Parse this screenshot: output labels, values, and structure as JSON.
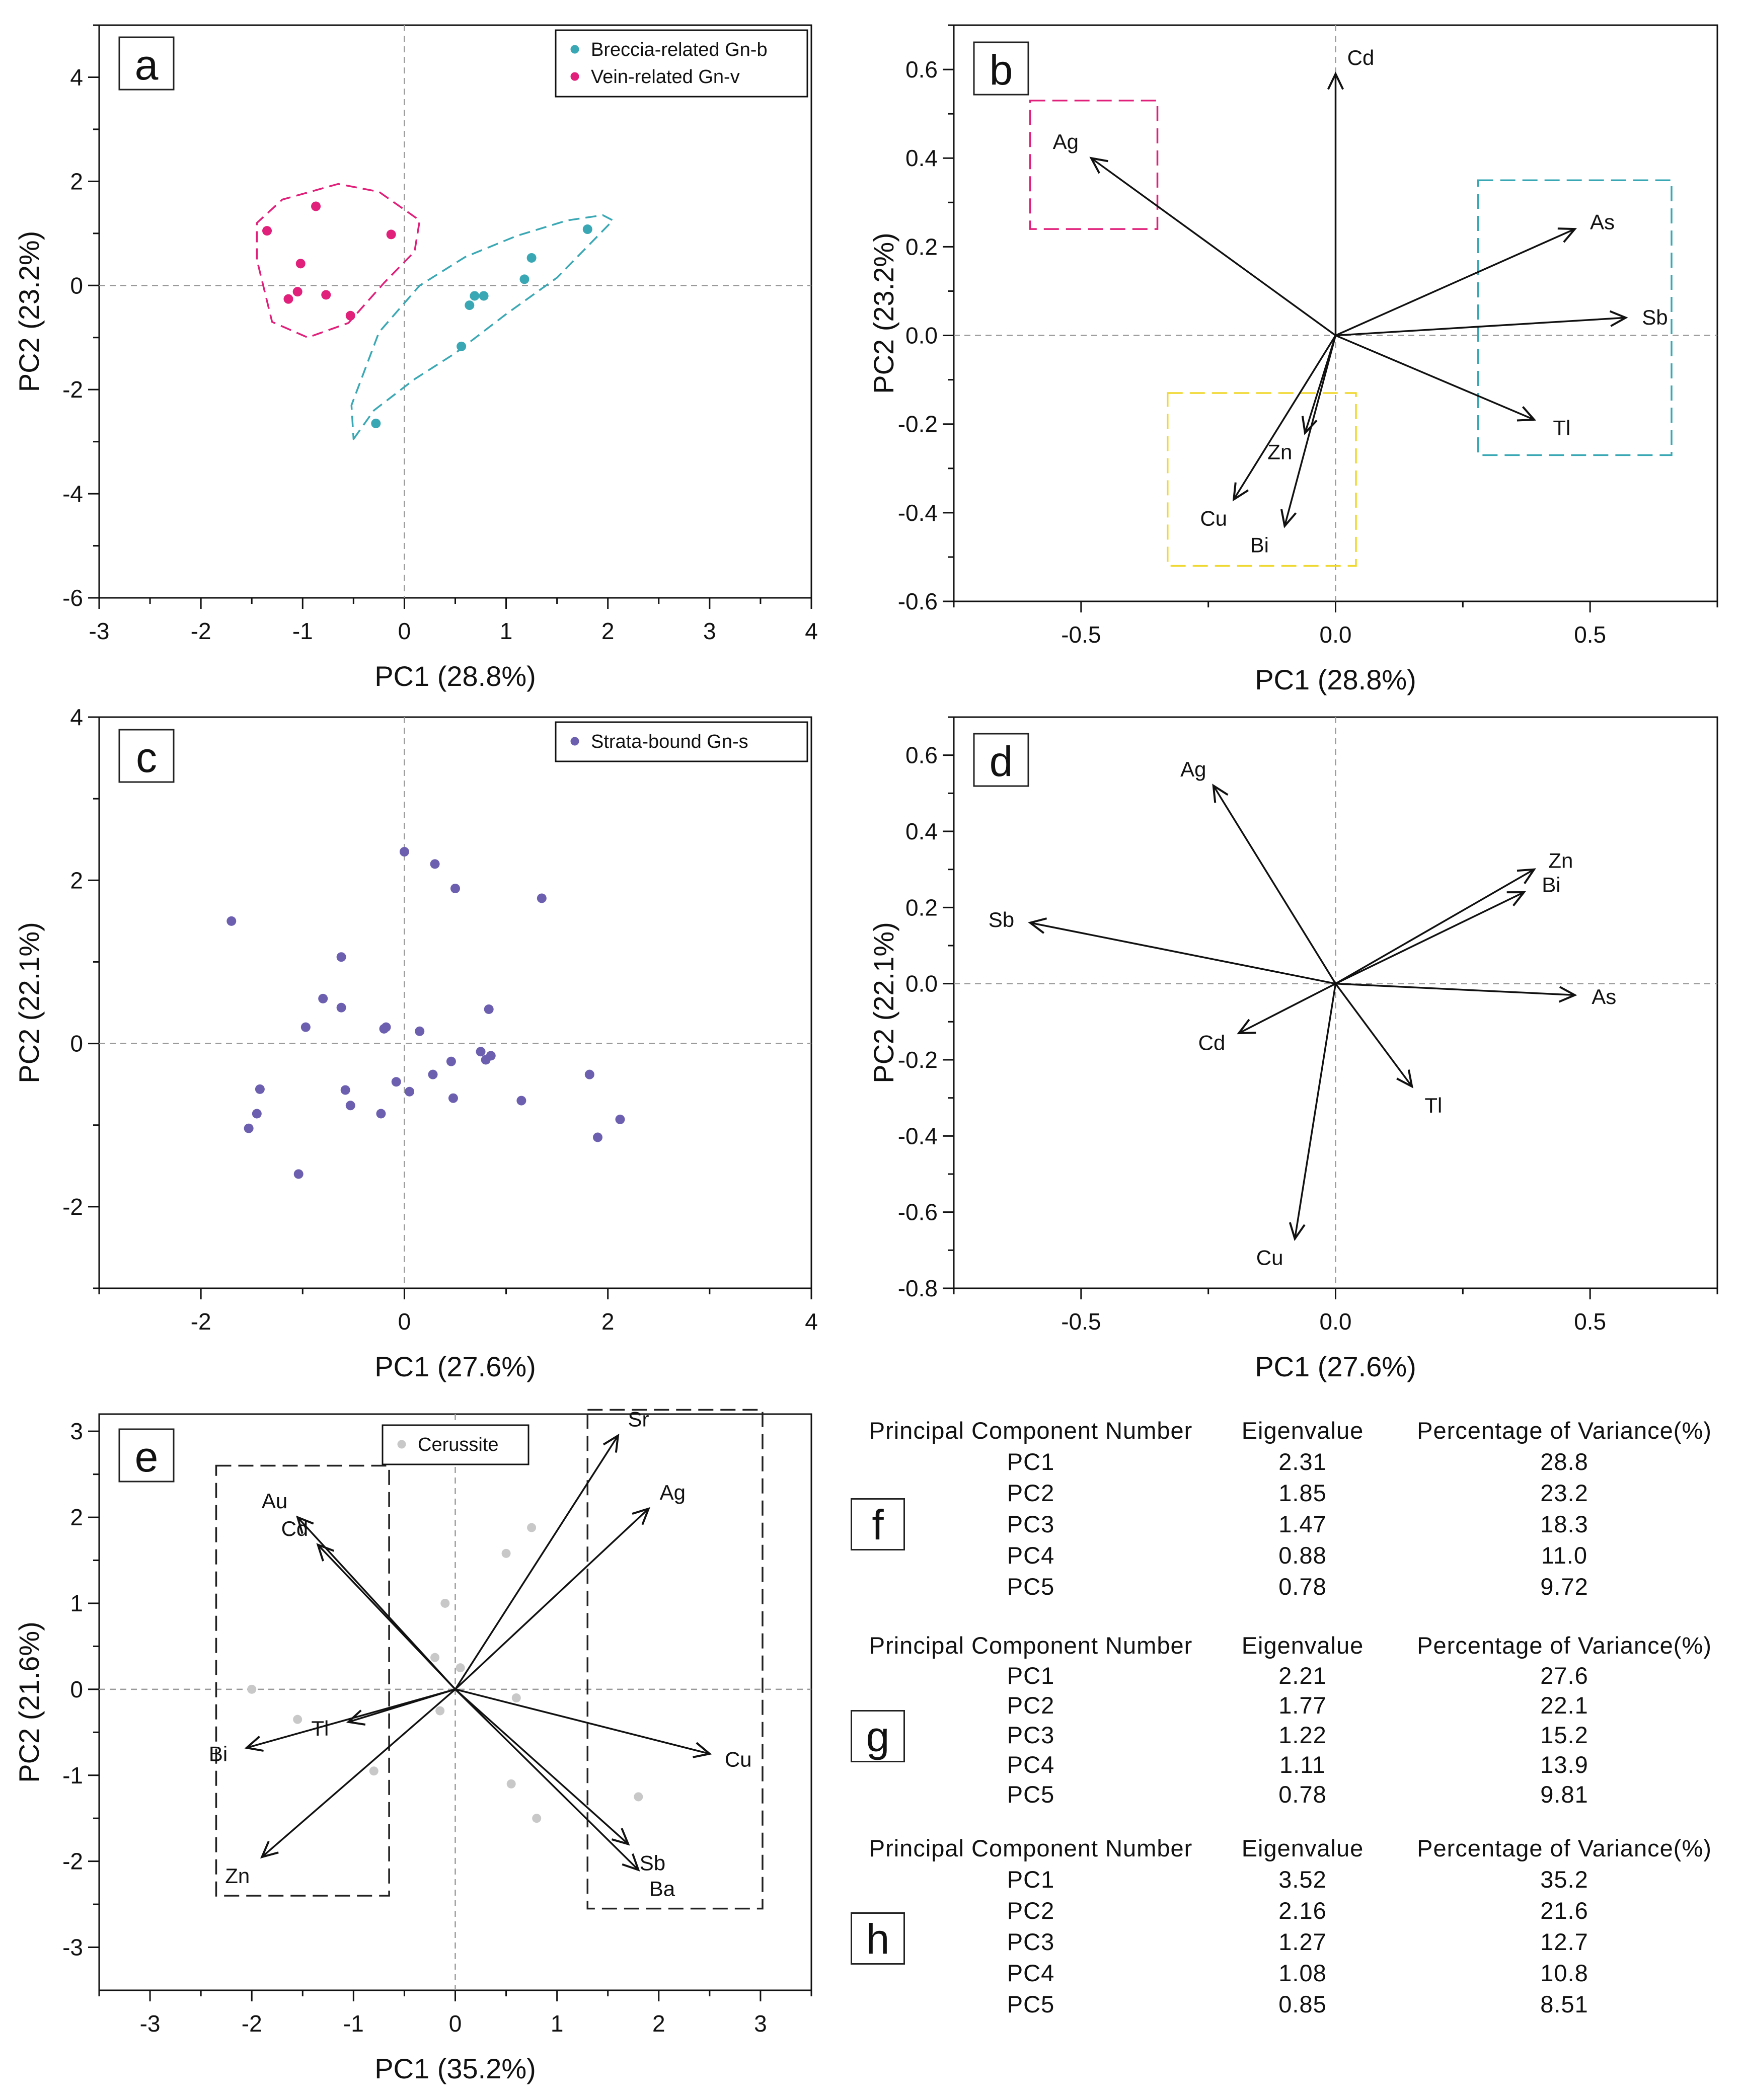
{
  "chart_data": [
    {
      "panel": "a",
      "type": "scatter",
      "xlabel": "PC1 (28.8%)",
      "ylabel": "PC2 (23.2%)",
      "xlim": [
        -3,
        4
      ],
      "ylim": [
        -6,
        5
      ],
      "xticks": [
        -3,
        -2,
        -1,
        0,
        1,
        2,
        3,
        4
      ],
      "yticks": [
        -6,
        -4,
        -2,
        0,
        2,
        4
      ],
      "legend_position": "top-right",
      "series": [
        {
          "name": "Breccia-related Gn-b",
          "color": "#3aa8b4",
          "points": [
            [
              -0.28,
              -2.65
            ],
            [
              0.56,
              -1.17
            ],
            [
              0.64,
              -0.38
            ],
            [
              0.69,
              -0.2
            ],
            [
              0.78,
              -0.2
            ],
            [
              1.18,
              0.12
            ],
            [
              1.25,
              0.53
            ],
            [
              1.8,
              1.08
            ]
          ],
          "envelope": [
            [
              -0.5,
              -2.95
            ],
            [
              -0.3,
              -2.4
            ],
            [
              0.1,
              -1.8
            ],
            [
              0.5,
              -1.3
            ],
            [
              1.0,
              -0.55
            ],
            [
              1.5,
              0.15
            ],
            [
              1.9,
              0.95
            ],
            [
              2.05,
              1.25
            ],
            [
              1.95,
              1.35
            ],
            [
              1.6,
              1.25
            ],
            [
              1.1,
              0.95
            ],
            [
              0.6,
              0.55
            ],
            [
              0.15,
              0.0
            ],
            [
              -0.25,
              -0.9
            ],
            [
              -0.52,
              -2.3
            ],
            [
              -0.5,
              -2.95
            ]
          ]
        },
        {
          "name": "Vein-related Gn-v",
          "color": "#e0207a",
          "points": [
            [
              -1.35,
              1.05
            ],
            [
              -0.87,
              1.52
            ],
            [
              -1.02,
              0.42
            ],
            [
              -1.05,
              -0.12
            ],
            [
              -1.14,
              -0.26
            ],
            [
              -0.77,
              -0.18
            ],
            [
              -0.53,
              -0.58
            ],
            [
              -0.13,
              0.98
            ]
          ],
          "envelope": [
            [
              -1.45,
              0.5
            ],
            [
              -1.45,
              1.2
            ],
            [
              -1.2,
              1.65
            ],
            [
              -0.65,
              1.95
            ],
            [
              -0.25,
              1.8
            ],
            [
              0.15,
              1.25
            ],
            [
              0.1,
              0.65
            ],
            [
              -0.2,
              0.05
            ],
            [
              -0.55,
              -0.72
            ],
            [
              -0.95,
              -1.0
            ],
            [
              -1.3,
              -0.7
            ],
            [
              -1.45,
              0.5
            ]
          ]
        }
      ]
    },
    {
      "panel": "b",
      "type": "biplot",
      "xlabel": "PC1 (28.8%)",
      "ylabel": "PC2 (23.2%)",
      "xlim": [
        -0.75,
        0.75
      ],
      "ylim": [
        -0.6,
        0.7
      ],
      "xticks": [
        -0.5,
        0.0,
        0.5
      ],
      "xtick_labels": [
        "-0.5",
        "0.0",
        "0.5"
      ],
      "yticks": [
        -0.6,
        -0.4,
        -0.2,
        0.0,
        0.2,
        0.4,
        0.6
      ],
      "ytick_labels": [
        "-0.6",
        "-0.4",
        "-0.2",
        "0.0",
        "0.2",
        "0.4",
        "0.6"
      ],
      "vectors": [
        {
          "label": "Cd",
          "x": 0.0,
          "y": 0.59
        },
        {
          "label": "Ag",
          "x": -0.48,
          "y": 0.4
        },
        {
          "label": "As",
          "x": 0.47,
          "y": 0.24
        },
        {
          "label": "Sb",
          "x": 0.57,
          "y": 0.04
        },
        {
          "label": "Tl",
          "x": 0.39,
          "y": -0.19
        },
        {
          "label": "Zn",
          "x": -0.06,
          "y": -0.22
        },
        {
          "label": "Cu",
          "x": -0.2,
          "y": -0.37
        },
        {
          "label": "Bi",
          "x": -0.1,
          "y": -0.43
        }
      ],
      "boxes": [
        {
          "color": "#e0207a",
          "x": [
            -0.6,
            -0.35
          ],
          "y": [
            0.24,
            0.53
          ]
        },
        {
          "color": "#3aa8b4",
          "x": [
            0.28,
            0.66
          ],
          "y": [
            -0.27,
            0.35
          ]
        },
        {
          "color": "#f0d832",
          "x": [
            -0.33,
            0.04
          ],
          "y": [
            -0.52,
            -0.13
          ]
        }
      ]
    },
    {
      "panel": "c",
      "type": "scatter",
      "xlabel": "PC1 (27.6%)",
      "ylabel": "PC2 (22.1%)",
      "xlim": [
        -3,
        4
      ],
      "ylim": [
        -3,
        4
      ],
      "xticks": [
        -2,
        0,
        2,
        4
      ],
      "yticks": [
        -2,
        0,
        2,
        4
      ],
      "minor_xticks": [
        -3,
        -1,
        1,
        3
      ],
      "minor_yticks": [
        -3,
        -1,
        1,
        3
      ],
      "legend_position": "top-right",
      "series": [
        {
          "name": "Strata-bound Gn-s",
          "color": "#6c5fb0",
          "points": [
            [
              -1.7,
              1.5
            ],
            [
              -1.42,
              -0.56
            ],
            [
              -1.45,
              -0.86
            ],
            [
              -1.53,
              -1.04
            ],
            [
              -1.04,
              -1.6
            ],
            [
              -0.97,
              0.2
            ],
            [
              -0.8,
              0.55
            ],
            [
              -0.62,
              1.06
            ],
            [
              -0.62,
              0.44
            ],
            [
              -0.58,
              -0.57
            ],
            [
              -0.53,
              -0.76
            ],
            [
              -0.2,
              0.18
            ],
            [
              -0.18,
              0.2
            ],
            [
              -0.23,
              -0.86
            ],
            [
              -0.08,
              -0.47
            ],
            [
              0.0,
              2.35
            ],
            [
              0.05,
              -0.59
            ],
            [
              0.15,
              0.15
            ],
            [
              0.3,
              2.2
            ],
            [
              0.28,
              -0.38
            ],
            [
              0.5,
              1.9
            ],
            [
              0.46,
              -0.22
            ],
            [
              0.48,
              -0.67
            ],
            [
              0.75,
              -0.1
            ],
            [
              0.8,
              -0.2
            ],
            [
              0.83,
              0.42
            ],
            [
              0.85,
              -0.15
            ],
            [
              1.35,
              1.78
            ],
            [
              1.15,
              -0.7
            ],
            [
              1.82,
              -0.38
            ],
            [
              1.9,
              -1.15
            ],
            [
              2.12,
              -0.93
            ]
          ]
        }
      ]
    },
    {
      "panel": "d",
      "type": "biplot",
      "xlabel": "PC1 (27.6%)",
      "ylabel": "PC2 (22.1%)",
      "xlim": [
        -0.75,
        0.75
      ],
      "ylim": [
        -0.8,
        0.7
      ],
      "xticks": [
        -0.5,
        0.0,
        0.5
      ],
      "xtick_labels": [
        "-0.5",
        "0.0",
        "0.5"
      ],
      "yticks": [
        -0.8,
        -0.6,
        -0.4,
        -0.2,
        0.0,
        0.2,
        0.4,
        0.6
      ],
      "ytick_labels": [
        "-0.8",
        "-0.6",
        "-0.4",
        "-0.2",
        "0.0",
        "0.2",
        "0.4",
        "0.6"
      ],
      "vectors": [
        {
          "label": "Ag",
          "x": -0.24,
          "y": 0.52
        },
        {
          "label": "Zn",
          "x": 0.39,
          "y": 0.3
        },
        {
          "label": "Bi",
          "x": 0.37,
          "y": 0.24
        },
        {
          "label": "Sb",
          "x": -0.6,
          "y": 0.16
        },
        {
          "label": "As",
          "x": 0.47,
          "y": -0.03
        },
        {
          "label": "Cd",
          "x": -0.19,
          "y": -0.13
        },
        {
          "label": "Tl",
          "x": 0.15,
          "y": -0.27
        },
        {
          "label": "Cu",
          "x": -0.08,
          "y": -0.67
        }
      ]
    },
    {
      "panel": "e",
      "type": "biplot",
      "xlabel": "PC1 (35.2%)",
      "ylabel": "PC2 (21.6%)",
      "xlim": [
        -3.5,
        3.5
      ],
      "ylim": [
        -3.5,
        3.2
      ],
      "xticks": [
        -3,
        -2,
        -1,
        0,
        1,
        2,
        3
      ],
      "yticks": [
        -3,
        -2,
        -1,
        0,
        1,
        2,
        3
      ],
      "legend_position": "top-center",
      "series": [
        {
          "name": "Cerussite",
          "color": "#c8c8c8",
          "points": [
            [
              -2.0,
              0.0
            ],
            [
              -1.55,
              -0.35
            ],
            [
              -0.8,
              -0.95
            ],
            [
              -0.2,
              0.37
            ],
            [
              -0.15,
              -0.25
            ],
            [
              -0.1,
              1.0
            ],
            [
              0.05,
              0.25
            ],
            [
              0.5,
              1.58
            ],
            [
              0.6,
              -0.1
            ],
            [
              0.55,
              -1.1
            ],
            [
              0.75,
              1.88
            ],
            [
              0.8,
              -1.5
            ],
            [
              1.8,
              -1.25
            ]
          ]
        }
      ],
      "vectors": [
        {
          "label": "Sr",
          "x": 1.6,
          "y": 2.95
        },
        {
          "label": "Ag",
          "x": 1.9,
          "y": 2.1
        },
        {
          "label": "Au",
          "x": -1.55,
          "y": 2.0
        },
        {
          "label": "Cd",
          "x": -1.35,
          "y": 1.68
        },
        {
          "label": "Cu",
          "x": 2.5,
          "y": -0.75
        },
        {
          "label": "Bi",
          "x": -2.05,
          "y": -0.68
        },
        {
          "label": "Tl",
          "x": -1.05,
          "y": -0.38
        },
        {
          "label": "Zn",
          "x": -1.9,
          "y": -1.95
        },
        {
          "label": "Sb",
          "x": 1.7,
          "y": -1.8
        },
        {
          "label": "Ba",
          "x": 1.8,
          "y": -2.1
        }
      ],
      "boxes": [
        {
          "color": "#222222",
          "x": [
            -2.35,
            -0.65
          ],
          "y": [
            -2.4,
            2.6
          ]
        },
        {
          "color": "#222222",
          "x": [
            1.3,
            3.02
          ],
          "y": [
            -2.55,
            3.25
          ]
        }
      ]
    }
  ],
  "panel_labels": {
    "a": "a",
    "b": "b",
    "c": "c",
    "d": "d",
    "e": "e",
    "f": "f",
    "g": "g",
    "h": "h"
  },
  "tables": [
    {
      "panel": "f",
      "headers": [
        "Principal Component Number",
        "Eigenvalue",
        "Percentage of Variance(%)"
      ],
      "rows": [
        [
          "PC1",
          "2.31",
          "28.8"
        ],
        [
          "PC2",
          "1.85",
          "23.2"
        ],
        [
          "PC3",
          "1.47",
          "18.3"
        ],
        [
          "PC4",
          "0.88",
          "11.0"
        ],
        [
          "PC5",
          "0.78",
          "9.72"
        ]
      ]
    },
    {
      "panel": "g",
      "headers": [
        "Principal Component Number",
        "Eigenvalue",
        "Percentage of Variance(%)"
      ],
      "rows": [
        [
          "PC1",
          "2.21",
          "27.6"
        ],
        [
          "PC2",
          "1.77",
          "22.1"
        ],
        [
          "PC3",
          "1.22",
          "15.2"
        ],
        [
          "PC4",
          "1.11",
          "13.9"
        ],
        [
          "PC5",
          "0.78",
          "9.81"
        ]
      ]
    },
    {
      "panel": "h",
      "headers": [
        "Principal Component Number",
        "Eigenvalue",
        "Percentage of Variance(%)"
      ],
      "rows": [
        [
          "PC1",
          "3.52",
          "35.2"
        ],
        [
          "PC2",
          "2.16",
          "21.6"
        ],
        [
          "PC3",
          "1.27",
          "12.7"
        ],
        [
          "PC4",
          "1.08",
          "10.8"
        ],
        [
          "PC5",
          "0.85",
          "8.51"
        ]
      ]
    }
  ]
}
